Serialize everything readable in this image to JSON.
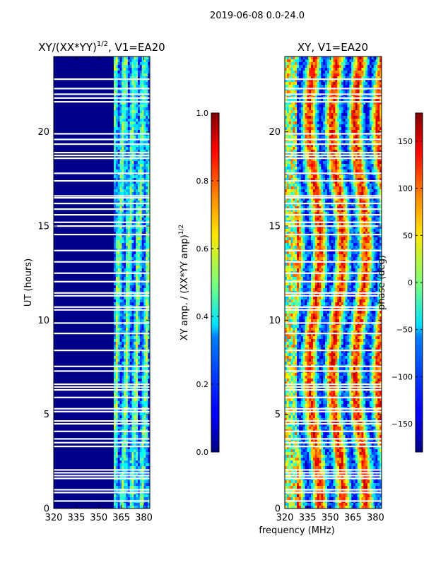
{
  "suptitle": "2019-06-08 0.0-24.0",
  "shared_xlabel": "frequency (MHz)",
  "chart_data": [
    {
      "type": "heatmap",
      "title": "XY/(XX*YY)^1/2, V1=EA20",
      "title_main": "XY/(XX*YY)",
      "title_sup": "1/2",
      "title_tail": ", V1=EA20",
      "xlabel": "frequency (MHz)",
      "ylabel": "UT (hours)",
      "xlim": [
        320,
        384
      ],
      "ylim": [
        0,
        24
      ],
      "xticks": [
        320,
        335,
        350,
        365,
        380
      ],
      "xtick_labels": [
        "320",
        "335",
        "350",
        "365",
        "380"
      ],
      "yticks": [
        0,
        5,
        10,
        15,
        20
      ],
      "ytick_labels": [
        "0",
        "5",
        "10",
        "15",
        "20"
      ],
      "colormap": "jet",
      "band_start_mhz": 360,
      "colorbar": {
        "label_main": "XY amp. / (XX*YY amp)",
        "label_sup": "1/2",
        "range": [
          0.0,
          1.0
        ],
        "ticks": [
          0.0,
          0.2,
          0.4,
          0.6,
          0.8,
          1.0
        ],
        "tick_labels": [
          "0.0",
          "0.2",
          "0.4",
          "0.6",
          "0.8",
          "1.0"
        ]
      }
    },
    {
      "type": "heatmap",
      "title": "XY, V1=EA20",
      "xlabel": "frequency (MHz)",
      "ylabel": "",
      "xlim": [
        320,
        384
      ],
      "ylim": [
        0,
        24
      ],
      "xticks": [
        320,
        335,
        350,
        365,
        380
      ],
      "xtick_labels": [
        "320",
        "335",
        "350",
        "365",
        "380"
      ],
      "yticks": [
        0,
        5,
        10,
        15,
        20
      ],
      "ytick_labels": [
        "0",
        "5",
        "10",
        "15",
        "20"
      ],
      "colormap": "jet",
      "colorbar": {
        "label": "phase (deg)",
        "range": [
          -180,
          180
        ],
        "ticks": [
          -150,
          -100,
          -50,
          0,
          50,
          100,
          150
        ],
        "tick_labels": [
          "−150",
          "−100",
          "−50",
          "0",
          "50",
          "100",
          "150"
        ]
      }
    }
  ],
  "flagged_gaps_hours": [
    0.4,
    0.85,
    1.0,
    1.6,
    1.75,
    1.9,
    2.05,
    3.3,
    3.5,
    3.7,
    4.1,
    4.5,
    4.65,
    5.15,
    5.3,
    5.9,
    6.3,
    6.45,
    6.6,
    7.3,
    7.55,
    8.4,
    9.3,
    9.85,
    10.55,
    10.7,
    11.3,
    11.45,
    12.05,
    12.5,
    13.1,
    13.7,
    14.55,
    15.0,
    15.2,
    15.6,
    15.9,
    16.2,
    16.5,
    16.6,
    17.4,
    17.8,
    18.6,
    18.75,
    18.9,
    19.35,
    19.6,
    19.9,
    21.6,
    21.8,
    22.0,
    22.3,
    22.8
  ]
}
